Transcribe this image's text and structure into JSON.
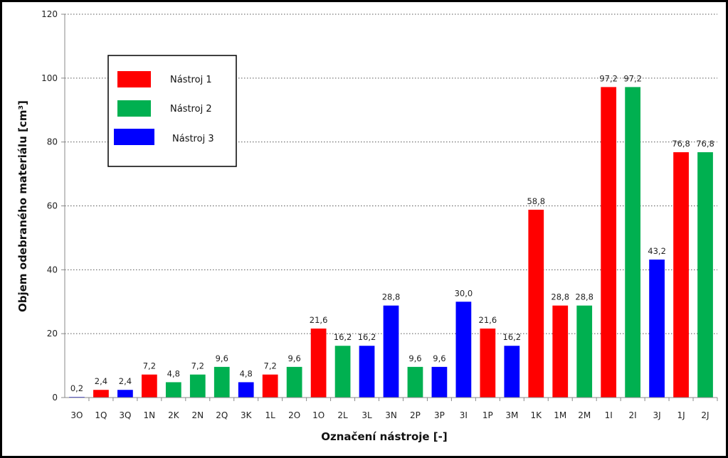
{
  "chart_data": {
    "type": "bar",
    "title": "",
    "xlabel": "Označení nástroje [-]",
    "ylabel": "Objem odebraného materiálu [cm³]",
    "ylim": [
      0,
      120
    ],
    "yticks": [
      0,
      20,
      40,
      60,
      80,
      100,
      120
    ],
    "grid": "horizontal-dotted",
    "legend_position": "top-left",
    "legend": [
      {
        "name": "Nástroj 1",
        "color": "#ff0000"
      },
      {
        "name": "Nástroj 2",
        "color": "#00b050"
      },
      {
        "name": "Nástroj 3",
        "color": "#0000ff"
      }
    ],
    "categories": [
      "3O",
      "1Q",
      "3Q",
      "1N",
      "2K",
      "2N",
      "2Q",
      "3K",
      "1L",
      "2O",
      "1O",
      "2L",
      "3L",
      "3N",
      "2P",
      "3P",
      "3I",
      "1P",
      "3M",
      "1K",
      "1M",
      "2M",
      "1I",
      "2I",
      "3J",
      "1J",
      "2J"
    ],
    "values": [
      0.2,
      2.4,
      2.4,
      7.2,
      4.8,
      7.2,
      9.6,
      4.8,
      7.2,
      9.6,
      21.6,
      16.2,
      16.2,
      28.8,
      9.6,
      9.6,
      30.0,
      21.6,
      16.2,
      58.8,
      28.8,
      28.8,
      97.2,
      97.2,
      43.2,
      76.8,
      76.8
    ],
    "value_labels": [
      "0,2",
      "2,4",
      "2,4",
      "7,2",
      "4,8",
      "7,2",
      "9,6",
      "4,8",
      "7,2",
      "9,6",
      "21,6",
      "16,2",
      "16,2",
      "28,8",
      "9,6",
      "9,6",
      "30,0",
      "21,6",
      "16,2",
      "58,8",
      "28,8",
      "28,8",
      "97,2",
      "97,2",
      "43,2",
      "76,8",
      "76,8"
    ],
    "series_index": [
      3,
      1,
      3,
      1,
      2,
      2,
      2,
      3,
      1,
      2,
      1,
      2,
      3,
      3,
      2,
      3,
      3,
      1,
      3,
      1,
      1,
      2,
      1,
      2,
      3,
      1,
      2
    ]
  }
}
